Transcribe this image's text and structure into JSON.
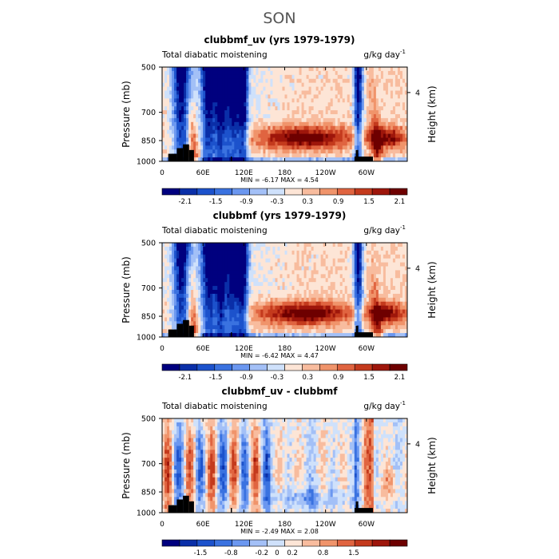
{
  "figure": {
    "season_title": "SON"
  },
  "chart_data": [
    {
      "type": "heatmap",
      "title": "clubbmf_uv (yrs 1979-1979)",
      "subtitle_left": "Total diabatic moistening",
      "units_prefix": "g/kg day",
      "units_exponent": "-1",
      "ylabel": "Pressure (mb)",
      "ylabel_right": "Height (km)",
      "y_ticks": [
        "500",
        "700",
        "850",
        "1000"
      ],
      "y_right_ticks": [
        "4"
      ],
      "x_ticks": [
        "0",
        "60E",
        "120E",
        "180",
        "120W",
        "60W"
      ],
      "stats": "MIN =   -6.17   MAX =    4.54",
      "colorbar": {
        "colors": [
          "#00007f",
          "#0a2fa8",
          "#1c52cc",
          "#3a72e0",
          "#6b97f0",
          "#a3c0f7",
          "#cfe1fb",
          "#fde5d6",
          "#f8bc9e",
          "#f0946b",
          "#e06440",
          "#c43a1d",
          "#9e160b",
          "#6e0000"
        ],
        "labels": [
          "-2.1",
          "-1.5",
          "-0.9",
          "-0.3",
          "0.3",
          "0.9",
          "1.5",
          "2.1"
        ],
        "label_positions": [
          1,
          3,
          5,
          7,
          9,
          11,
          13,
          15
        ]
      },
      "field_seed": 11,
      "difference": false
    },
    {
      "type": "heatmap",
      "title": "clubbmf (yrs 1979-1979)",
      "subtitle_left": "Total diabatic moistening",
      "units_prefix": "g/kg day",
      "units_exponent": "-1",
      "ylabel": "Pressure (mb)",
      "ylabel_right": "Height (km)",
      "y_ticks": [
        "500",
        "700",
        "850",
        "1000"
      ],
      "y_right_ticks": [
        "4"
      ],
      "x_ticks": [
        "0",
        "60E",
        "120E",
        "180",
        "120W",
        "60W"
      ],
      "stats": "MIN =   -6.42   MAX =    4.47",
      "colorbar": {
        "colors": [
          "#00007f",
          "#0a2fa8",
          "#1c52cc",
          "#3a72e0",
          "#6b97f0",
          "#a3c0f7",
          "#cfe1fb",
          "#fde5d6",
          "#f8bc9e",
          "#f0946b",
          "#e06440",
          "#c43a1d",
          "#9e160b",
          "#6e0000"
        ],
        "labels": [
          "-2.1",
          "-1.5",
          "-0.9",
          "-0.3",
          "0.3",
          "0.9",
          "1.5",
          "2.1"
        ],
        "label_positions": [
          1,
          3,
          5,
          7,
          9,
          11,
          13,
          15
        ]
      },
      "field_seed": 23,
      "difference": false
    },
    {
      "type": "heatmap",
      "title": "clubbmf_uv - clubbmf",
      "subtitle_left": "Total diabatic moistening",
      "units_prefix": "g/kg day",
      "units_exponent": "-1",
      "ylabel": "Pressure (mb)",
      "ylabel_right": "Height (km)",
      "y_ticks": [
        "500",
        "700",
        "850",
        "1000"
      ],
      "y_right_ticks": [
        "4"
      ],
      "x_ticks": [
        "0",
        "60E",
        "120E",
        "180",
        "120W",
        "60W"
      ],
      "stats": "MIN =   -2.49   MAX =    2.08",
      "colorbar": {
        "colors": [
          "#00007f",
          "#0a2fa8",
          "#1c52cc",
          "#3a72e0",
          "#6b97f0",
          "#a3c0f7",
          "#cfe1fb",
          "#fde5d6",
          "#f8bc9e",
          "#f0946b",
          "#e06440",
          "#c43a1d",
          "#9e160b",
          "#6e0000"
        ],
        "labels": [
          "-1.5",
          "-0.8",
          "-0.2",
          "0",
          "0.2",
          "0.8",
          "1.5"
        ],
        "label_positions": [
          2,
          4,
          6,
          7,
          8,
          10,
          12
        ]
      },
      "field_seed": 37,
      "difference": true
    }
  ]
}
